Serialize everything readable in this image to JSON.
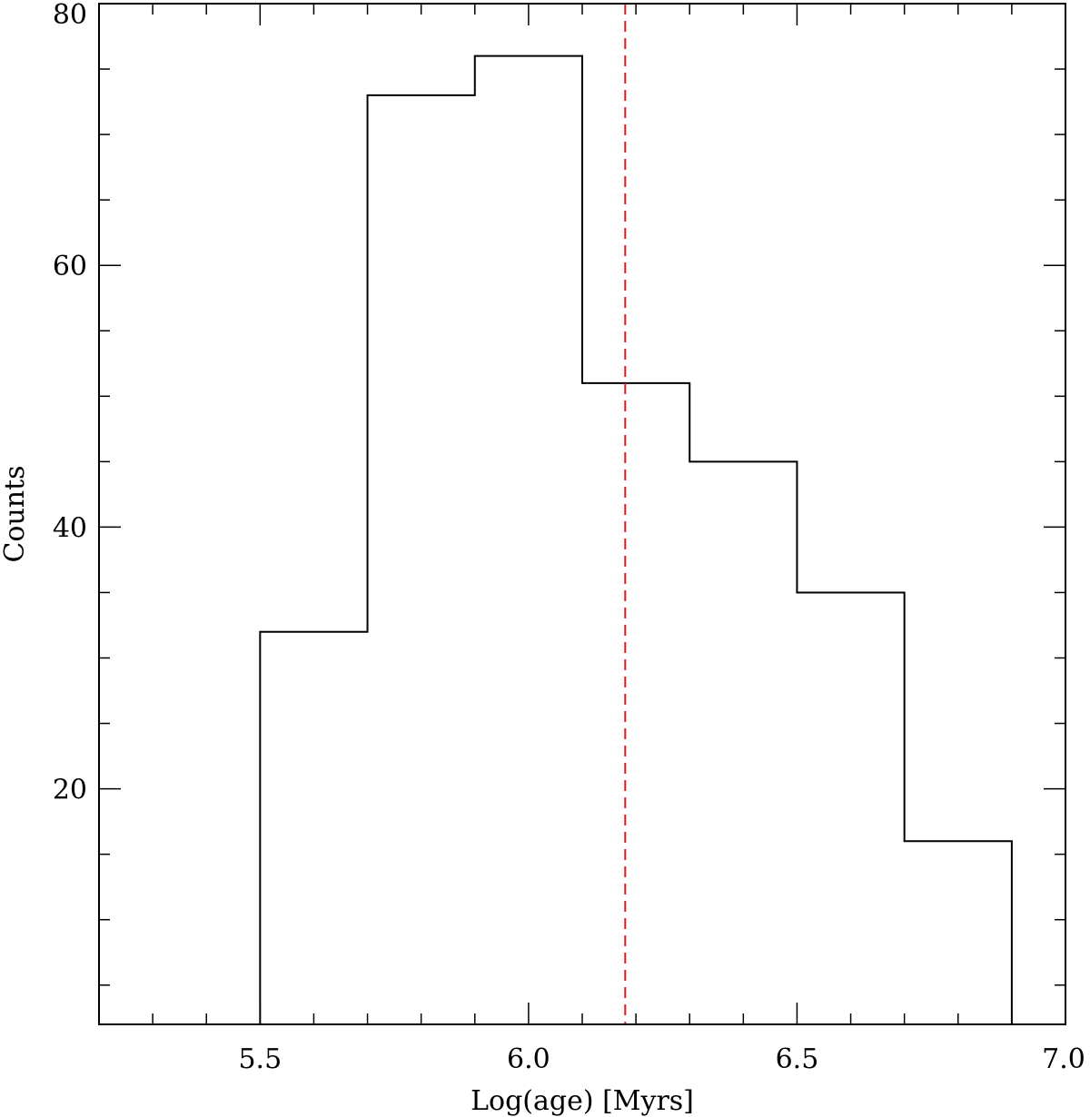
{
  "chart_data": {
    "type": "histogram",
    "title": "",
    "xlabel": "Log(age) [Myrs]",
    "ylabel": "Counts",
    "xlim": [
      5.2,
      7.0
    ],
    "ylim": [
      2,
      80
    ],
    "x_major_ticks": [
      5.5,
      6.0,
      6.5,
      7.0
    ],
    "x_major_tick_labels": [
      "5.5",
      "6.0",
      "6.5",
      "7.0"
    ],
    "x_minor_step": 0.1,
    "y_major_ticks": [
      20,
      40,
      60,
      80
    ],
    "y_major_tick_labels": [
      "20",
      "40",
      "60",
      "80"
    ],
    "y_minor_step": 5,
    "bin_edges": [
      5.5,
      5.7,
      5.9,
      6.1,
      6.3,
      6.5,
      6.7,
      6.9
    ],
    "counts": [
      32,
      73,
      76,
      51,
      45,
      35,
      16
    ],
    "reference_line": {
      "x": 6.18,
      "style": "dashed",
      "color": "#e8191c"
    },
    "line_color": "#000000",
    "grid": false,
    "legend": "none"
  }
}
